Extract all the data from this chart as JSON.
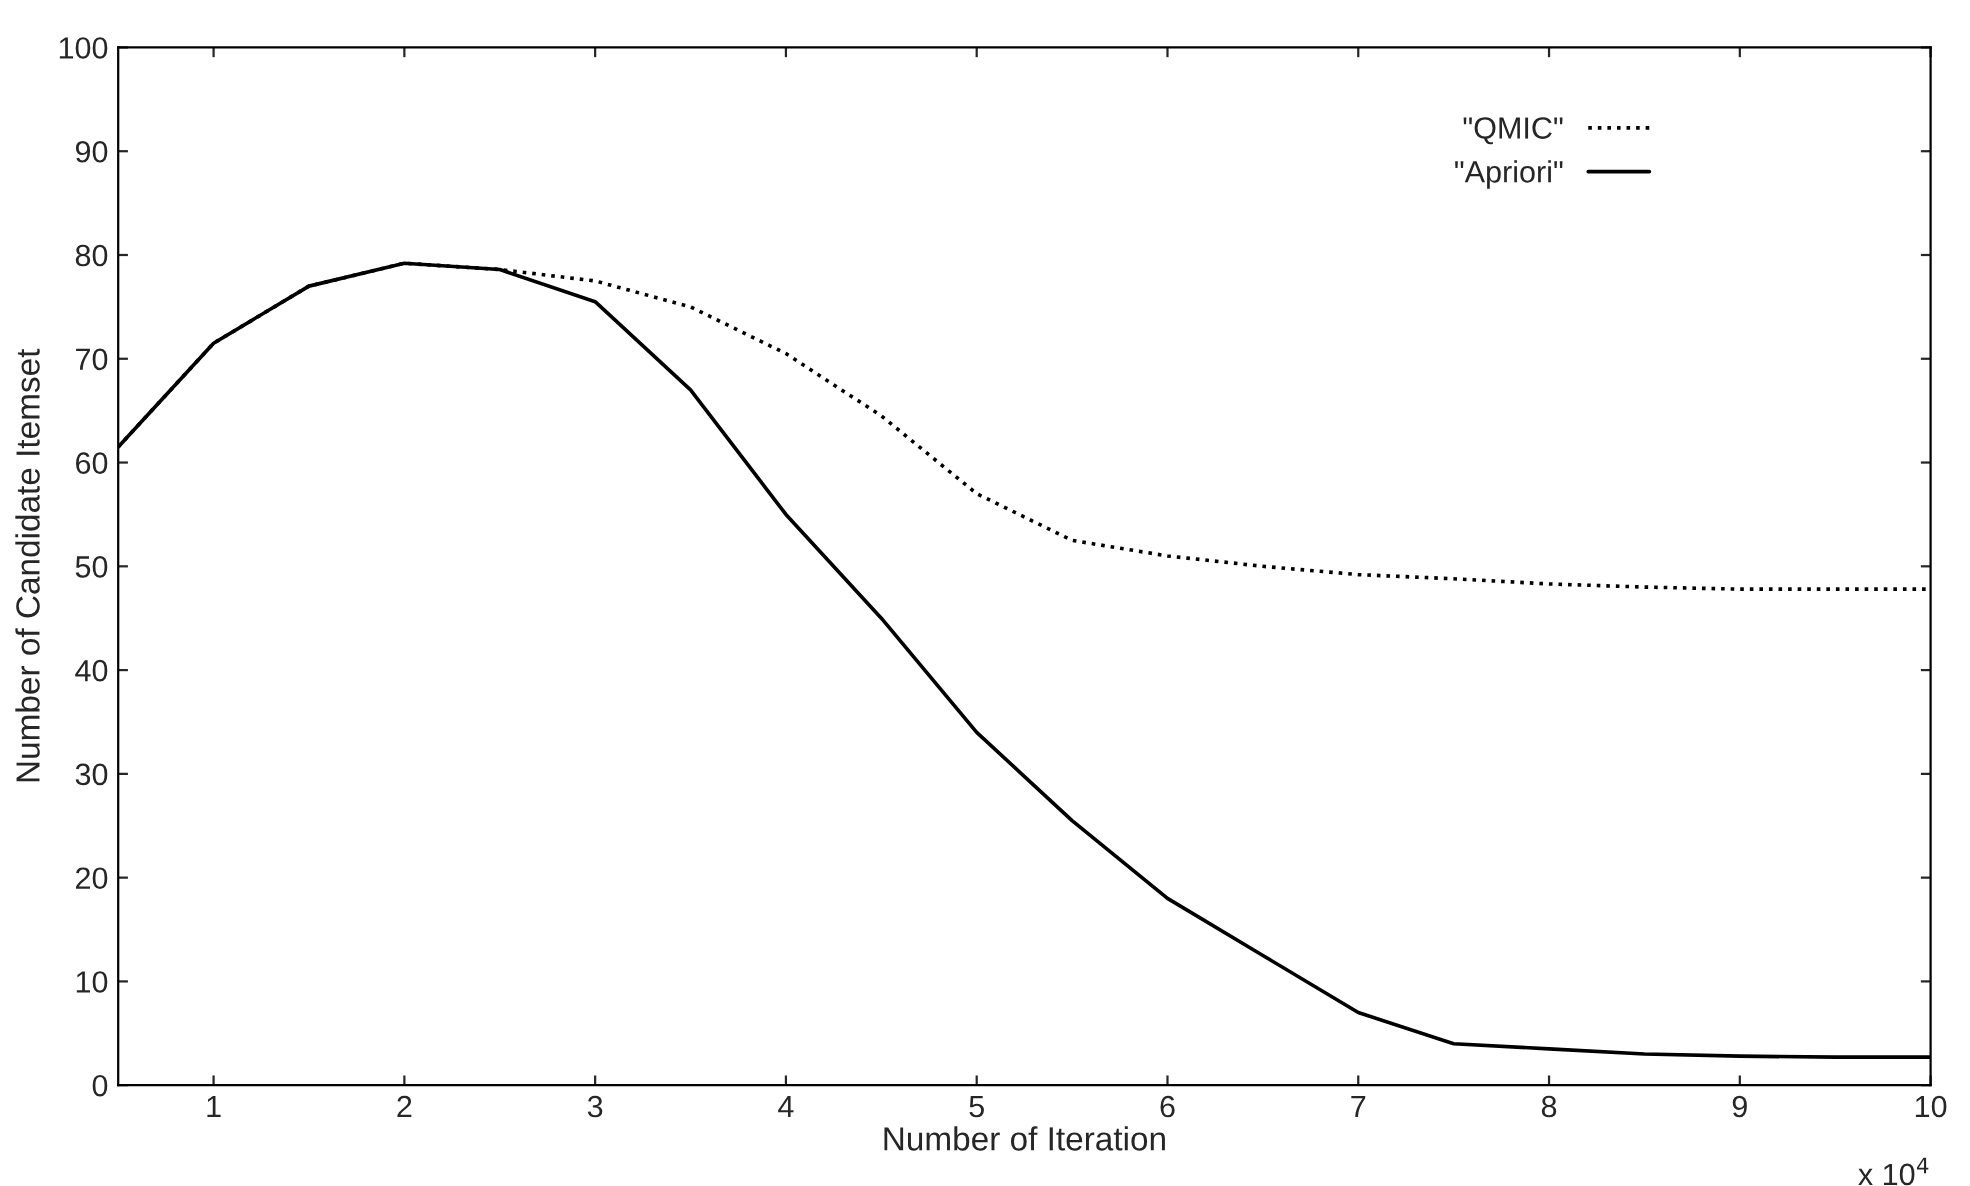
{
  "chart_data": {
    "type": "line",
    "xlabel": "Number of Iteration",
    "ylabel": "Number of Candidate Itemset",
    "x": [
      0.5,
      1,
      1.5,
      2,
      2.5,
      3,
      3.5,
      4,
      4.5,
      5,
      5.5,
      6,
      6.5,
      7,
      7.5,
      8,
      8.5,
      9,
      9.5,
      10
    ],
    "series": [
      {
        "name": "\"QMIC\"",
        "color": "#000000",
        "line_style": "dotted",
        "values": [
          61.5,
          71.5,
          77,
          79.2,
          78.6,
          77.5,
          75,
          70.5,
          64.5,
          57,
          52.5,
          51,
          50,
          49.2,
          48.8,
          48.3,
          48,
          47.8,
          47.8,
          47.8
        ]
      },
      {
        "name": "\"Apriori\"",
        "color": "#000000",
        "line_style": "solid",
        "values": [
          61.5,
          71.5,
          77,
          79.2,
          78.6,
          75.5,
          67,
          55,
          45,
          34,
          25.5,
          18,
          12.5,
          7,
          4,
          3.5,
          3,
          2.8,
          2.7,
          2.7
        ]
      }
    ],
    "xlim": [
      0.5,
      10
    ],
    "xticks": [
      1,
      2,
      3,
      4,
      5,
      6,
      7,
      8,
      9,
      10
    ],
    "ylim": [
      0,
      100
    ],
    "yticks": [
      0,
      10,
      20,
      30,
      40,
      50,
      60,
      70,
      80,
      90,
      100
    ],
    "annotations": [
      "x 10$^{4}$"
    ],
    "legend": "top right",
    "grid": false
  }
}
